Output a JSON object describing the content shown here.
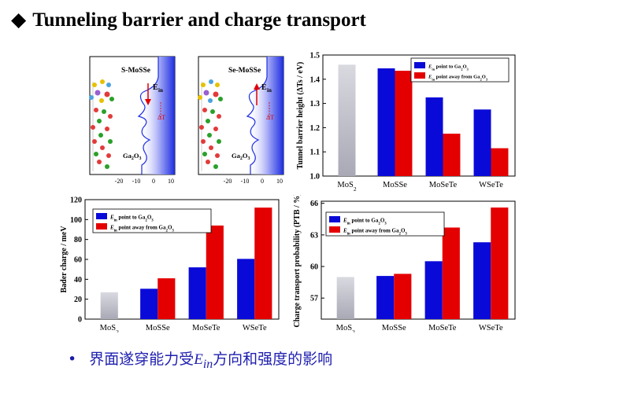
{
  "slide": {
    "title": "Tunneling barrier and charge transport",
    "bullet_before": "界面遂穿能力受",
    "bullet_symbol": "E",
    "bullet_sub": "in",
    "bullet_after": "方向和强度的影响"
  },
  "potential_panels": [
    {
      "label": "S-MoSSe",
      "field_label": "Ein",
      "delta_label": "ΔT",
      "substrate": "Ga2O3",
      "xticks": [
        "-20",
        "-10",
        "0",
        "10"
      ]
    },
    {
      "label": "Se-MoSSe",
      "field_label": "Ein",
      "delta_label": "ΔT",
      "substrate": "Ga2O3",
      "xticks": [
        "-20",
        "-10",
        "0",
        "10"
      ]
    }
  ],
  "colors": {
    "ref": "#c4c4cc",
    "toward": "#0a0ad8",
    "away": "#e40000"
  },
  "chart_data": [
    {
      "id": "tunnel",
      "type": "bar",
      "categories": [
        "MoS2",
        "MoSSe",
        "MoSeTe",
        "WSeTe"
      ],
      "ylabel": "Tunnel barrier height (ΔTs / eV)",
      "ylim": [
        1.0,
        1.5
      ],
      "yticks": [
        "1.0",
        "1.1",
        "1.2",
        "1.3",
        "1.4",
        "1.5"
      ],
      "legend_position": "top-right",
      "reference": {
        "category": "MoS2",
        "value": 1.46
      },
      "series": [
        {
          "name": "Ein point to Ga2O3",
          "values": [
            null,
            1.445,
            1.325,
            1.275
          ]
        },
        {
          "name": "Ein point away from Ga2O3",
          "values": [
            null,
            1.435,
            1.175,
            1.115
          ]
        }
      ]
    },
    {
      "id": "bader",
      "type": "bar",
      "categories": [
        "MoS2",
        "MoSSe",
        "MoSeTe",
        "WSeTe"
      ],
      "ylabel": "Bader charge / meV",
      "ylim": [
        0,
        120
      ],
      "yticks": [
        "0",
        "20",
        "40",
        "60",
        "80",
        "100",
        "120"
      ],
      "legend_position": "top-left",
      "reference": {
        "category": "MoS2",
        "value": 27
      },
      "series": [
        {
          "name": "Ein point to Ga2O3",
          "values": [
            null,
            30.5,
            52,
            60.5
          ]
        },
        {
          "name": "Ein point away from Ga2O3",
          "values": [
            null,
            41,
            94,
            112
          ]
        }
      ]
    },
    {
      "id": "ptb",
      "type": "bar",
      "categories": [
        "MoS2",
        "MoSSe",
        "MoSeTe",
        "WSeTe"
      ],
      "ylabel": "Charge transport probability (PTB / %)",
      "ylim": [
        55,
        66.2
      ],
      "yticks": [
        "57",
        "60",
        "63",
        "66"
      ],
      "legend_position": "top-left",
      "reference": {
        "category": "MoS2",
        "value": 59.0
      },
      "series": [
        {
          "name": "Ein point to Ga2O3",
          "values": [
            null,
            59.1,
            60.5,
            62.3
          ]
        },
        {
          "name": "Ein point away from Ga2O3",
          "values": [
            null,
            59.3,
            63.7,
            65.6
          ]
        }
      ]
    }
  ]
}
